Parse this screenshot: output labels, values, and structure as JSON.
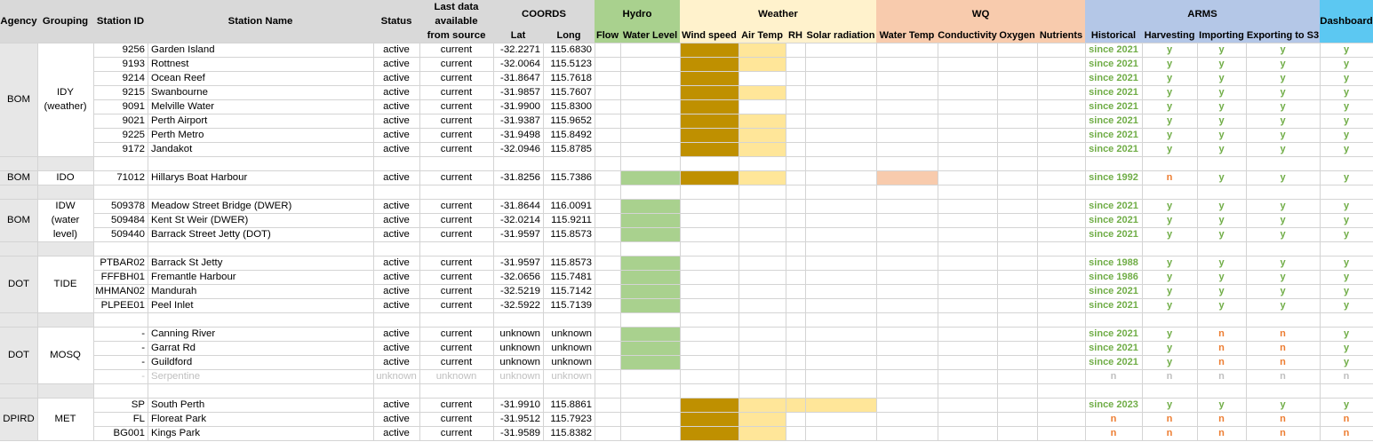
{
  "colors": {
    "header_gray": "#d9d9d9",
    "merged_gray": "#e7e7e7",
    "hydro": "#a9d18e",
    "weather": "#fff2cc",
    "wq": "#f8cbad",
    "arms": "#b4c7e7",
    "dashboard": "#5cc8f2",
    "wind": "#bf9000",
    "air_temp": "#ffe699",
    "gridline": "#d4d4d4",
    "yes_green": "#70ad47",
    "no_orange": "#ed7d31",
    "faded": "#bfbfbf"
  },
  "headers": {
    "agency": "Agency",
    "grouping": "Grouping",
    "station_id": "Station ID",
    "station_name": "Station Name",
    "status": "Status",
    "last_data": "Last data available from source",
    "coords": "COORDS",
    "lat": "Lat",
    "long": "Long",
    "hydro": "Hydro",
    "flow": "Flow",
    "water_level": "Water Level",
    "weather": "Weather",
    "wind_speed": "Wind speed",
    "air_temp": "Air Temp",
    "rh": "RH",
    "solar_radiation": "Solar radiation",
    "wq": "WQ",
    "water_temp": "Water Temp",
    "conductivity": "Conductivity",
    "oxygen": "Oxygen",
    "nutrients": "Nutrients",
    "arms": "ARMS",
    "historical": "Historical",
    "harvesting": "Harvesting",
    "importing": "Importing",
    "exporting": "Exporting to S3",
    "dashboard": "Dashboard"
  },
  "groups": [
    {
      "agency": "BOM",
      "grouping": "IDY (weather)"
    },
    {
      "agency": "BOM",
      "grouping": "IDO"
    },
    {
      "agency": "BOM",
      "grouping": "IDW (water level)"
    },
    {
      "agency": "DOT",
      "grouping": "TIDE"
    },
    {
      "agency": "DOT",
      "grouping": "MOSQ"
    },
    {
      "agency": "DPIRD",
      "grouping": "MET"
    }
  ],
  "rows": [
    {
      "id": "9256",
      "name": "Garden Island",
      "status": "active",
      "last": "current",
      "lat": "-32.2271",
      "long": "115.6830",
      "hist": "since 2021",
      "harv": "y",
      "imp": "y",
      "exp": "y",
      "dash": "y"
    },
    {
      "id": "9193",
      "name": "Rottnest",
      "status": "active",
      "last": "current",
      "lat": "-32.0064",
      "long": "115.5123",
      "hist": "since 2021",
      "harv": "y",
      "imp": "y",
      "exp": "y",
      "dash": "y"
    },
    {
      "id": "9214",
      "name": "Ocean Reef",
      "status": "active",
      "last": "current",
      "lat": "-31.8647",
      "long": "115.7618",
      "hist": "since 2021",
      "harv": "y",
      "imp": "y",
      "exp": "y",
      "dash": "y"
    },
    {
      "id": "9215",
      "name": "Swanbourne",
      "status": "active",
      "last": "current",
      "lat": "-31.9857",
      "long": "115.7607",
      "hist": "since 2021",
      "harv": "y",
      "imp": "y",
      "exp": "y",
      "dash": "y"
    },
    {
      "id": "9091",
      "name": "Melville Water",
      "status": "active",
      "last": "current",
      "lat": "-31.9900",
      "long": "115.8300",
      "hist": "since 2021",
      "harv": "y",
      "imp": "y",
      "exp": "y",
      "dash": "y"
    },
    {
      "id": "9021",
      "name": "Perth Airport",
      "status": "active",
      "last": "current",
      "lat": "-31.9387",
      "long": "115.9652",
      "hist": "since 2021",
      "harv": "y",
      "imp": "y",
      "exp": "y",
      "dash": "y"
    },
    {
      "id": "9225",
      "name": "Perth Metro",
      "status": "active",
      "last": "current",
      "lat": "-31.9498",
      "long": "115.8492",
      "hist": "since 2021",
      "harv": "y",
      "imp": "y",
      "exp": "y",
      "dash": "y"
    },
    {
      "id": "9172",
      "name": "Jandakot",
      "status": "active",
      "last": "current",
      "lat": "-32.0946",
      "long": "115.8785",
      "hist": "since 2021",
      "harv": "y",
      "imp": "y",
      "exp": "y",
      "dash": "y"
    },
    {
      "id": "71012",
      "name": "Hillarys Boat Harbour",
      "status": "active",
      "last": "current",
      "lat": "-31.8256",
      "long": "115.7386",
      "hist": "since 1992",
      "harv": "n",
      "imp": "y",
      "exp": "y",
      "dash": "y"
    },
    {
      "id": "509378",
      "name": "Meadow Street Bridge (DWER)",
      "status": "active",
      "last": "current",
      "lat": "-31.8644",
      "long": "116.0091",
      "hist": "since 2021",
      "harv": "y",
      "imp": "y",
      "exp": "y",
      "dash": "y"
    },
    {
      "id": "509484",
      "name": "Kent St Weir (DWER)",
      "status": "active",
      "last": "current",
      "lat": "-32.0214",
      "long": "115.9211",
      "hist": "since 2021",
      "harv": "y",
      "imp": "y",
      "exp": "y",
      "dash": "y"
    },
    {
      "id": "509440",
      "name": "Barrack Street Jetty (DOT)",
      "status": "active",
      "last": "current",
      "lat": "-31.9597",
      "long": "115.8573",
      "hist": "since 2021",
      "harv": "y",
      "imp": "y",
      "exp": "y",
      "dash": "y"
    },
    {
      "id": "PTBAR02",
      "name": "Barrack St Jetty",
      "status": "active",
      "last": "current",
      "lat": "-31.9597",
      "long": "115.8573",
      "hist": "since 1988",
      "harv": "y",
      "imp": "y",
      "exp": "y",
      "dash": "y"
    },
    {
      "id": "FFFBH01",
      "name": "Fremantle Harbour",
      "status": "active",
      "last": "current",
      "lat": "-32.0656",
      "long": "115.7481",
      "hist": "since 1986",
      "harv": "y",
      "imp": "y",
      "exp": "y",
      "dash": "y"
    },
    {
      "id": "MHMAN02",
      "name": "Mandurah",
      "status": "active",
      "last": "current",
      "lat": "-32.5219",
      "long": "115.7142",
      "hist": "since 2021",
      "harv": "y",
      "imp": "y",
      "exp": "y",
      "dash": "y"
    },
    {
      "id": "PLPEE01",
      "name": "Peel Inlet",
      "status": "active",
      "last": "current",
      "lat": "-32.5922",
      "long": "115.7139",
      "hist": "since 2021",
      "harv": "y",
      "imp": "y",
      "exp": "y",
      "dash": "y"
    },
    {
      "id": "-",
      "name": "Canning River",
      "status": "active",
      "last": "current",
      "lat": "unknown",
      "long": "unknown",
      "hist": "since 2021",
      "harv": "y",
      "imp": "n",
      "exp": "n",
      "dash": "y"
    },
    {
      "id": "-",
      "name": "Garrat Rd",
      "status": "active",
      "last": "current",
      "lat": "unknown",
      "long": "unknown",
      "hist": "since 2021",
      "harv": "y",
      "imp": "n",
      "exp": "n",
      "dash": "y"
    },
    {
      "id": "-",
      "name": "Guildford",
      "status": "active",
      "last": "current",
      "lat": "unknown",
      "long": "unknown",
      "hist": "since 2021",
      "harv": "y",
      "imp": "n",
      "exp": "n",
      "dash": "y"
    },
    {
      "id": "-",
      "name": "Serpentine",
      "status": "unknown",
      "last": "unknown",
      "lat": "unknown",
      "long": "unknown",
      "hist": "n",
      "harv": "n",
      "imp": "n",
      "exp": "n",
      "dash": "n"
    },
    {
      "id": "SP",
      "name": "South Perth",
      "status": "active",
      "last": "current",
      "lat": "-31.9910",
      "long": "115.8861",
      "hist": "since 2023",
      "harv": "y",
      "imp": "y",
      "exp": "y",
      "dash": "y"
    },
    {
      "id": "FL",
      "name": "Floreat Park",
      "status": "active",
      "last": "current",
      "lat": "-31.9512",
      "long": "115.7923",
      "hist": "n",
      "harv": "n",
      "imp": "n",
      "exp": "n",
      "dash": "n"
    },
    {
      "id": "BG001",
      "name": "Kings Park",
      "status": "active",
      "last": "current",
      "lat": "-31.9589",
      "long": "115.8382",
      "hist": "n",
      "harv": "n",
      "imp": "n",
      "exp": "n",
      "dash": "n"
    }
  ]
}
